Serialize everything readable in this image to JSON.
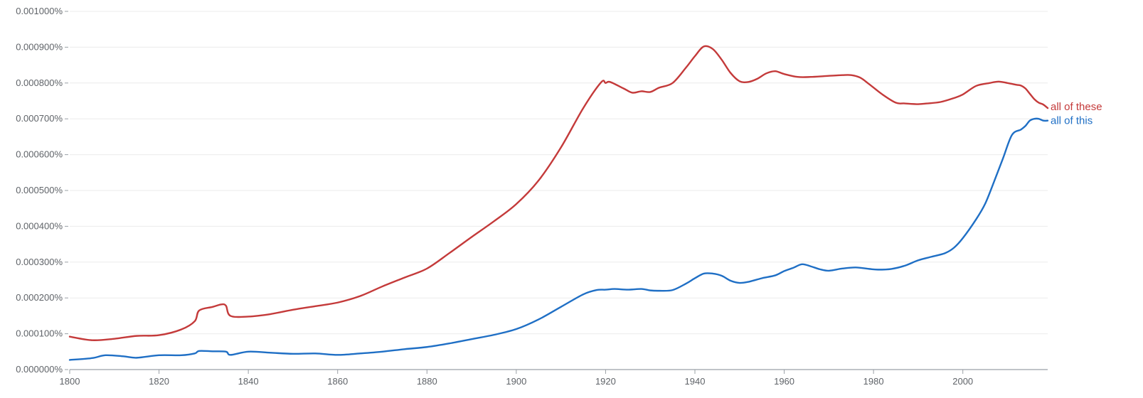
{
  "chart_data": {
    "type": "line",
    "xlim": [
      1800,
      2019
    ],
    "ylim": [
      0,
      1e-05
    ],
    "grid": true,
    "legend": "inline-right",
    "x_ticks": [
      "1800",
      "1820",
      "1840",
      "1860",
      "1880",
      "1900",
      "1920",
      "1940",
      "1960",
      "1980",
      "2000"
    ],
    "y_ticks": [
      "0.000000%",
      "0.000100%",
      "0.000200%",
      "0.000300%",
      "0.000400%",
      "0.000500%",
      "0.000600%",
      "0.000700%",
      "0.000800%",
      "0.000900%",
      "0.001000%"
    ],
    "series": [
      {
        "name": "all of these",
        "color": "#c43a3a",
        "x": [
          1800,
          1805,
          1810,
          1815,
          1820,
          1825,
          1828,
          1829,
          1832,
          1834,
          1835,
          1836,
          1840,
          1845,
          1850,
          1855,
          1860,
          1865,
          1870,
          1875,
          1880,
          1885,
          1890,
          1895,
          1900,
          1905,
          1910,
          1915,
          1919,
          1920,
          1921,
          1924,
          1926,
          1928,
          1930,
          1932,
          1935,
          1938,
          1940,
          1942,
          1944,
          1946,
          1948,
          1950,
          1952,
          1954,
          1956,
          1958,
          1960,
          1963,
          1966,
          1970,
          1973,
          1975,
          1977,
          1979,
          1982,
          1985,
          1987,
          1990,
          1992,
          1995,
          1998,
          2000,
          2003,
          2006,
          2008,
          2010,
          2012,
          2013,
          2014,
          2015,
          2016,
          2017,
          2018,
          2019
        ],
        "y": [
          9.2e-07,
          8.2e-07,
          8.6e-07,
          9.4e-07,
          9.6e-07,
          1.12e-06,
          1.35e-06,
          1.65e-06,
          1.75e-06,
          1.82e-06,
          1.78e-06,
          1.5e-06,
          1.48e-06,
          1.55e-06,
          1.67e-06,
          1.77e-06,
          1.87e-06,
          2.05e-06,
          2.32e-06,
          2.57e-06,
          2.82e-06,
          3.25e-06,
          3.7e-06,
          4.14e-06,
          4.62e-06,
          5.28e-06,
          6.2e-06,
          7.3e-06,
          8.02e-06,
          8e-06,
          8.03e-06,
          7.85e-06,
          7.73e-06,
          7.77e-06,
          7.75e-06,
          7.87e-06,
          8e-06,
          8.43e-06,
          8.75e-06,
          9.02e-06,
          8.95e-06,
          8.65e-06,
          8.28e-06,
          8.05e-06,
          8.03e-06,
          8.12e-06,
          8.27e-06,
          8.33e-06,
          8.25e-06,
          8.17e-06,
          8.17e-06,
          8.2e-06,
          8.22e-06,
          8.22e-06,
          8.15e-06,
          7.97e-06,
          7.68e-06,
          7.45e-06,
          7.43e-06,
          7.41e-06,
          7.43e-06,
          7.47e-06,
          7.58e-06,
          7.68e-06,
          7.92e-06,
          8e-06,
          8.04e-06,
          8e-06,
          7.95e-06,
          7.93e-06,
          7.85e-06,
          7.7e-06,
          7.55e-06,
          7.45e-06,
          7.4e-06,
          7.3e-06
        ]
      },
      {
        "name": "all of this",
        "color": "#1f6fc5",
        "x": [
          1800,
          1805,
          1808,
          1812,
          1815,
          1820,
          1825,
          1828,
          1829,
          1832,
          1835,
          1836,
          1840,
          1845,
          1850,
          1855,
          1860,
          1865,
          1870,
          1875,
          1880,
          1885,
          1890,
          1895,
          1900,
          1905,
          1910,
          1915,
          1918,
          1920,
          1922,
          1925,
          1928,
          1930,
          1932,
          1935,
          1938,
          1940,
          1942,
          1944,
          1946,
          1948,
          1950,
          1952,
          1955,
          1958,
          1960,
          1962,
          1964,
          1966,
          1968,
          1970,
          1973,
          1976,
          1979,
          1981,
          1984,
          1987,
          1990,
          1993,
          1996,
          1998,
          2000,
          2003,
          2005,
          2007,
          2009,
          2011,
          2013,
          2014,
          2015,
          2016,
          2017,
          2018,
          2019
        ],
        "y": [
          2.7e-07,
          3.2e-07,
          4e-07,
          3.7e-07,
          3.3e-07,
          4e-07,
          4e-07,
          4.5e-07,
          5.2e-07,
          5.1e-07,
          5e-07,
          4.1e-07,
          5e-07,
          4.7e-07,
          4.4e-07,
          4.5e-07,
          4.1e-07,
          4.5e-07,
          5e-07,
          5.7e-07,
          6.3e-07,
          7.3e-07,
          8.5e-07,
          9.7e-07,
          1.13e-06,
          1.4e-06,
          1.75e-06,
          2.1e-06,
          2.22e-06,
          2.23e-06,
          2.25e-06,
          2.23e-06,
          2.25e-06,
          2.21e-06,
          2.2e-06,
          2.22e-06,
          2.4e-06,
          2.55e-06,
          2.68e-06,
          2.68e-06,
          2.62e-06,
          2.48e-06,
          2.42e-06,
          2.45e-06,
          2.55e-06,
          2.63e-06,
          2.75e-06,
          2.84e-06,
          2.94e-06,
          2.88e-06,
          2.8e-06,
          2.76e-06,
          2.82e-06,
          2.85e-06,
          2.81e-06,
          2.79e-06,
          2.81e-06,
          2.9e-06,
          3.05e-06,
          3.15e-06,
          3.25e-06,
          3.4e-06,
          3.67e-06,
          4.2e-06,
          4.63e-06,
          5.25e-06,
          5.9e-06,
          6.55e-06,
          6.7e-06,
          6.8e-06,
          6.95e-06,
          7e-06,
          7e-06,
          6.95e-06,
          6.95e-06
        ]
      }
    ]
  }
}
